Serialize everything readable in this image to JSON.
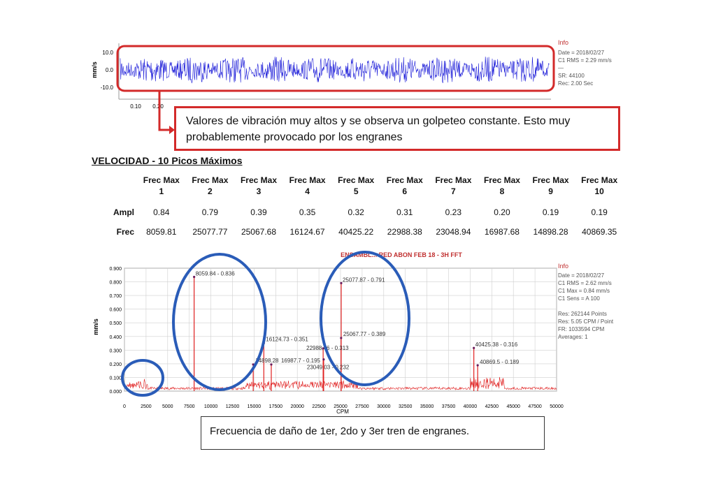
{
  "top_chart": {
    "ylabel": "mm/s",
    "yticks": [
      "10.0",
      "0.0",
      "-10.0"
    ],
    "xticks": [
      "0.10",
      "0.20"
    ],
    "info": {
      "title": "Info",
      "lines": [
        "Date = 2018/02/27",
        "C1 RMS = 2.29 mm/s",
        "—",
        "SR: 44100",
        "Rec: 2.00 Sec"
      ]
    }
  },
  "callout": {
    "text": "Valores de vibración muy altos y se observa un golpeteo constante. Esto  muy probablemente provocado por los engranes"
  },
  "table": {
    "title": "VELOCIDAD - 10 Picos Máximos",
    "headers": [
      {
        "top": "Frec Max",
        "num": "1"
      },
      {
        "top": "Frec Max",
        "num": "2"
      },
      {
        "top": "Frec Max",
        "num": "3"
      },
      {
        "top": "Frec Max",
        "num": "4"
      },
      {
        "top": "Frec Max",
        "num": "5"
      },
      {
        "top": "Frec Max",
        "num": "6"
      },
      {
        "top": "Frec Max",
        "num": "7"
      },
      {
        "top": "Frec Max",
        "num": "8"
      },
      {
        "top": "Frec Max",
        "num": "9"
      },
      {
        "top": "Frec Max",
        "num": "10"
      }
    ],
    "row_ampl_label": "Ampl",
    "row_frec_label": "Frec",
    "ampl": [
      "0.84",
      "0.79",
      "0.39",
      "0.35",
      "0.32",
      "0.31",
      "0.23",
      "0.20",
      "0.19",
      "0.19"
    ],
    "frec": [
      "8059.81",
      "25077.77",
      "25067.68",
      "16124.67",
      "40425.22",
      "22988.38",
      "23048.94",
      "16987.68",
      "14898.28",
      "40869.35"
    ]
  },
  "chart_data": {
    "type": "line",
    "title": "ENSAMBL... RED ABON FEB 18 - 3H FFT",
    "xlabel": "CPM",
    "ylabel": "mm/s",
    "xlim": [
      0,
      50000
    ],
    "ylim": [
      0,
      0.9
    ],
    "xticks": [
      "0",
      "2500",
      "5000",
      "7500",
      "10000",
      "12500",
      "15000",
      "17500",
      "20000",
      "22500",
      "25000",
      "27500",
      "30000",
      "32500",
      "35000",
      "37500",
      "40000",
      "42500",
      "45000",
      "47500",
      "50000"
    ],
    "yticks": [
      "0.000",
      "0.100",
      "0.200",
      "0.300",
      "0.400",
      "0.500",
      "0.600",
      "0.700",
      "0.800",
      "0.900"
    ],
    "series_color": "#e02020",
    "peaks": [
      {
        "x": 8059.84,
        "y": 0.836,
        "label": "8059.84 - 0.836"
      },
      {
        "x": 25077.87,
        "y": 0.791,
        "label": "25077.87 - 0.791"
      },
      {
        "x": 16124.73,
        "y": 0.351,
        "label": "16124.73 - 0.351"
      },
      {
        "x": 25067.77,
        "y": 0.389,
        "label": "25067.77 - 0.389"
      },
      {
        "x": 22988.46,
        "y": 0.313,
        "label": "22988.46 - 0.313"
      },
      {
        "x": 23049.03,
        "y": 0.232,
        "label": "23049.03 - 0.232"
      },
      {
        "x": 40425.38,
        "y": 0.316,
        "label": "40425.38 - 0.316"
      },
      {
        "x": 40869.5,
        "y": 0.189,
        "label": "40869.5 - 0.189"
      },
      {
        "x": 14898.28,
        "y": 0.195,
        "label": "14898.28"
      },
      {
        "x": 16987.68,
        "y": 0.195,
        "label": "16987.7 - 0.195"
      }
    ],
    "info": {
      "title": "Info",
      "lines": [
        "Date = 2018/02/27",
        "C1 RMS = 2.62 mm/s",
        "C1 Max = 0.84 mm/s",
        "C1 Sens = A 100",
        "",
        "Res: 262144 Points",
        "Res: 5.05 CPM / Point",
        "FR: 1033594 CPM",
        "Averages: 1"
      ]
    }
  },
  "footer": {
    "text": "Frecuencia de daño de 1er, 2do y 3er tren de engranes."
  }
}
